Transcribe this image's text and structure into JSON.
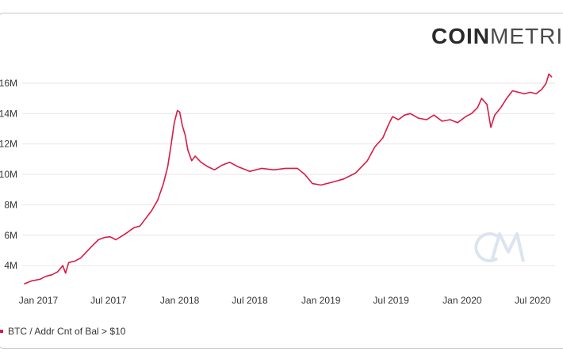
{
  "brand": {
    "bold": "COIN",
    "light": "METRIC"
  },
  "colors": {
    "series": "#d81b46",
    "grid": "#e6e6e6",
    "watermark": "#dce4f0"
  },
  "chart_data": {
    "type": "line",
    "title": "",
    "xlabel": "",
    "ylabel": "",
    "grid": true,
    "legend_position": "bottom-left",
    "y_ticks": [
      {
        "value": 4000000,
        "label": "4M"
      },
      {
        "value": 6000000,
        "label": "6M"
      },
      {
        "value": 8000000,
        "label": "8M"
      },
      {
        "value": 10000000,
        "label": "10M"
      },
      {
        "value": 12000000,
        "label": "12M"
      },
      {
        "value": 14000000,
        "label": "14M"
      },
      {
        "value": 16000000,
        "label": "16M"
      }
    ],
    "x_ticks": [
      {
        "value": "2017-01-01",
        "label": "Jan 2017"
      },
      {
        "value": "2017-07-01",
        "label": "Jul 2017"
      },
      {
        "value": "2018-01-01",
        "label": "Jan 2018"
      },
      {
        "value": "2018-07-01",
        "label": "Jul 2018"
      },
      {
        "value": "2019-01-01",
        "label": "Jan 2019"
      },
      {
        "value": "2019-07-01",
        "label": "Jul 2019"
      },
      {
        "value": "2020-01-01",
        "label": "Jan 2020"
      },
      {
        "value": "2020-07-01",
        "label": "Jul 2020"
      }
    ],
    "xlim": [
      "2016-11-20",
      "2020-08-28"
    ],
    "ylim": [
      2600000,
      17300000
    ],
    "series": [
      {
        "name": "BTC / Addr Cnt of Bal > $10",
        "points": [
          [
            "2016-11-25",
            2800000
          ],
          [
            "2016-12-15",
            3000000
          ],
          [
            "2017-01-05",
            3100000
          ],
          [
            "2017-01-20",
            3300000
          ],
          [
            "2017-02-05",
            3400000
          ],
          [
            "2017-02-20",
            3600000
          ],
          [
            "2017-03-05",
            4000000
          ],
          [
            "2017-03-12",
            3500000
          ],
          [
            "2017-03-20",
            4200000
          ],
          [
            "2017-04-05",
            4300000
          ],
          [
            "2017-04-20",
            4500000
          ],
          [
            "2017-05-05",
            4900000
          ],
          [
            "2017-05-20",
            5300000
          ],
          [
            "2017-06-05",
            5700000
          ],
          [
            "2017-06-20",
            5850000
          ],
          [
            "2017-07-05",
            5900000
          ],
          [
            "2017-07-20",
            5700000
          ],
          [
            "2017-08-05",
            5950000
          ],
          [
            "2017-08-20",
            6200000
          ],
          [
            "2017-09-05",
            6500000
          ],
          [
            "2017-09-20",
            6600000
          ],
          [
            "2017-10-05",
            7100000
          ],
          [
            "2017-10-20",
            7600000
          ],
          [
            "2017-11-05",
            8300000
          ],
          [
            "2017-11-20",
            9400000
          ],
          [
            "2017-12-01",
            10500000
          ],
          [
            "2017-12-10",
            12000000
          ],
          [
            "2017-12-18",
            13400000
          ],
          [
            "2017-12-26",
            14200000
          ],
          [
            "2018-01-01",
            14100000
          ],
          [
            "2018-01-08",
            13200000
          ],
          [
            "2018-01-15",
            12600000
          ],
          [
            "2018-01-22",
            11600000
          ],
          [
            "2018-02-01",
            10900000
          ],
          [
            "2018-02-10",
            11200000
          ],
          [
            "2018-02-25",
            10800000
          ],
          [
            "2018-03-15",
            10500000
          ],
          [
            "2018-04-01",
            10300000
          ],
          [
            "2018-04-20",
            10600000
          ],
          [
            "2018-05-10",
            10800000
          ],
          [
            "2018-06-01",
            10500000
          ],
          [
            "2018-07-01",
            10200000
          ],
          [
            "2018-08-01",
            10400000
          ],
          [
            "2018-09-01",
            10300000
          ],
          [
            "2018-10-01",
            10400000
          ],
          [
            "2018-11-01",
            10400000
          ],
          [
            "2018-11-20",
            10000000
          ],
          [
            "2018-12-10",
            9400000
          ],
          [
            "2019-01-01",
            9300000
          ],
          [
            "2019-02-01",
            9500000
          ],
          [
            "2019-03-01",
            9700000
          ],
          [
            "2019-04-01",
            10100000
          ],
          [
            "2019-05-01",
            10900000
          ],
          [
            "2019-05-20",
            11800000
          ],
          [
            "2019-06-10",
            12400000
          ],
          [
            "2019-06-25",
            13300000
          ],
          [
            "2019-07-05",
            13800000
          ],
          [
            "2019-07-20",
            13600000
          ],
          [
            "2019-08-05",
            13900000
          ],
          [
            "2019-08-20",
            14000000
          ],
          [
            "2019-09-10",
            13700000
          ],
          [
            "2019-10-01",
            13600000
          ],
          [
            "2019-10-20",
            13900000
          ],
          [
            "2019-11-10",
            13500000
          ],
          [
            "2019-12-01",
            13600000
          ],
          [
            "2019-12-20",
            13400000
          ],
          [
            "2020-01-10",
            13800000
          ],
          [
            "2020-01-25",
            14000000
          ],
          [
            "2020-02-10",
            14400000
          ],
          [
            "2020-02-20",
            15000000
          ],
          [
            "2020-03-05",
            14600000
          ],
          [
            "2020-03-15",
            13100000
          ],
          [
            "2020-03-25",
            13900000
          ],
          [
            "2020-04-10",
            14400000
          ],
          [
            "2020-04-25",
            15000000
          ],
          [
            "2020-05-10",
            15500000
          ],
          [
            "2020-05-25",
            15400000
          ],
          [
            "2020-06-10",
            15300000
          ],
          [
            "2020-06-25",
            15400000
          ],
          [
            "2020-07-10",
            15300000
          ],
          [
            "2020-07-25",
            15600000
          ],
          [
            "2020-08-05",
            16000000
          ],
          [
            "2020-08-12",
            16600000
          ],
          [
            "2020-08-20",
            16400000
          ]
        ]
      }
    ]
  }
}
